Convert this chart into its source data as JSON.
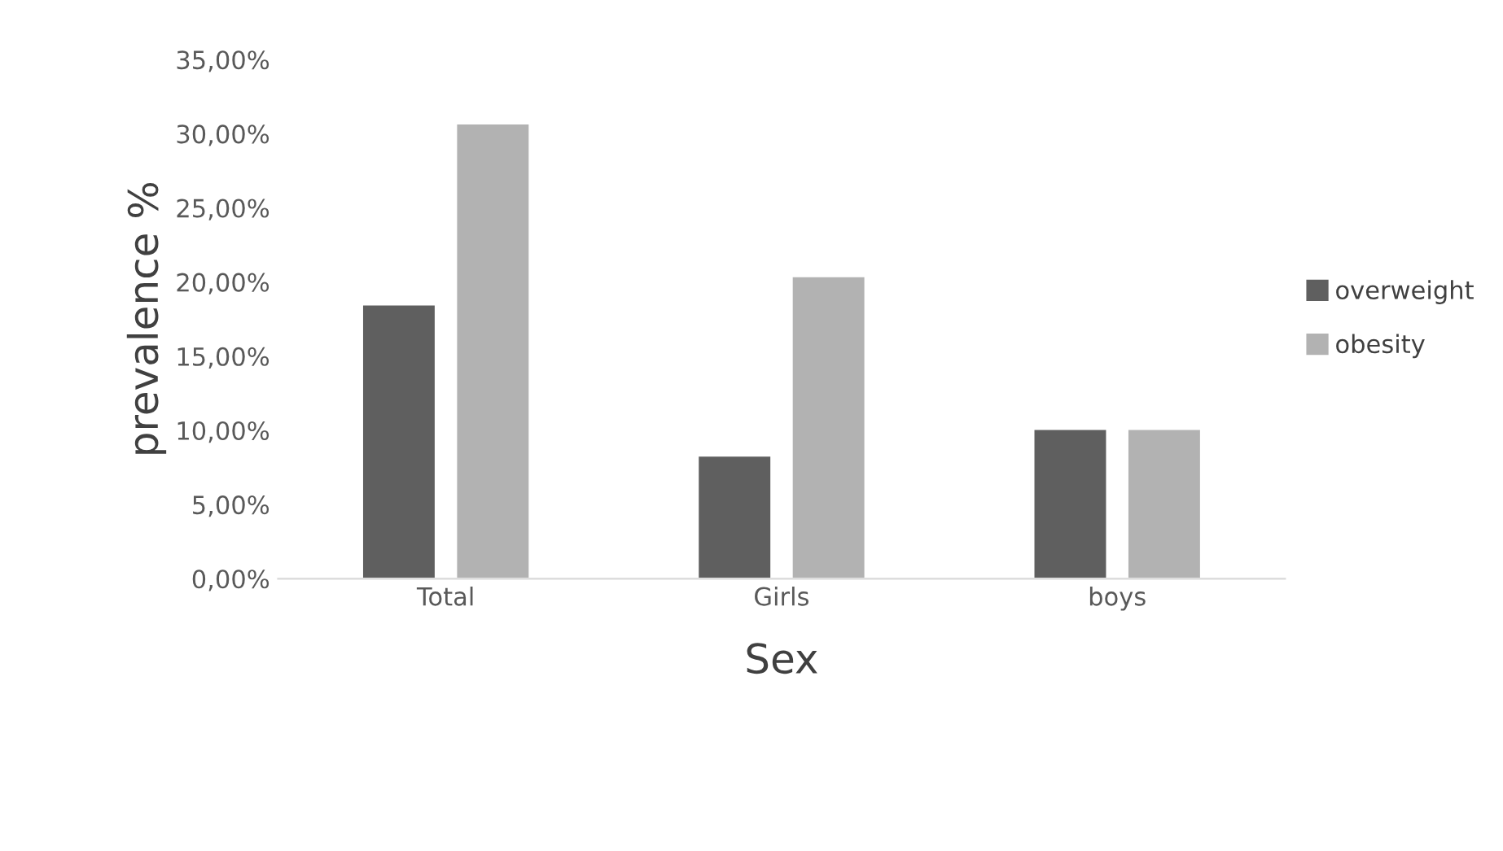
{
  "chart_data": {
    "type": "bar",
    "xlabel": "Sex",
    "ylabel": "prevalence %",
    "categories": [
      "Total",
      "Girls",
      "boys"
    ],
    "series": [
      {
        "name": "overweight",
        "color": "#5f5f5f",
        "values": [
          18.5,
          8.3,
          10.1
        ]
      },
      {
        "name": "obesity",
        "color": "#b2b2b2",
        "values": [
          30.7,
          20.4,
          10.1
        ]
      }
    ],
    "ylim": [
      0,
      35
    ],
    "yticks": [
      {
        "value": 0,
        "label": "0,00%"
      },
      {
        "value": 5,
        "label": "5,00%"
      },
      {
        "value": 10,
        "label": "10,00%"
      },
      {
        "value": 15,
        "label": "15,00%"
      },
      {
        "value": 20,
        "label": "20,00%"
      },
      {
        "value": 25,
        "label": "25,00%"
      },
      {
        "value": 30,
        "label": "30,00%"
      },
      {
        "value": 35,
        "label": "35,00%"
      }
    ],
    "grid": false,
    "legend": "right"
  }
}
